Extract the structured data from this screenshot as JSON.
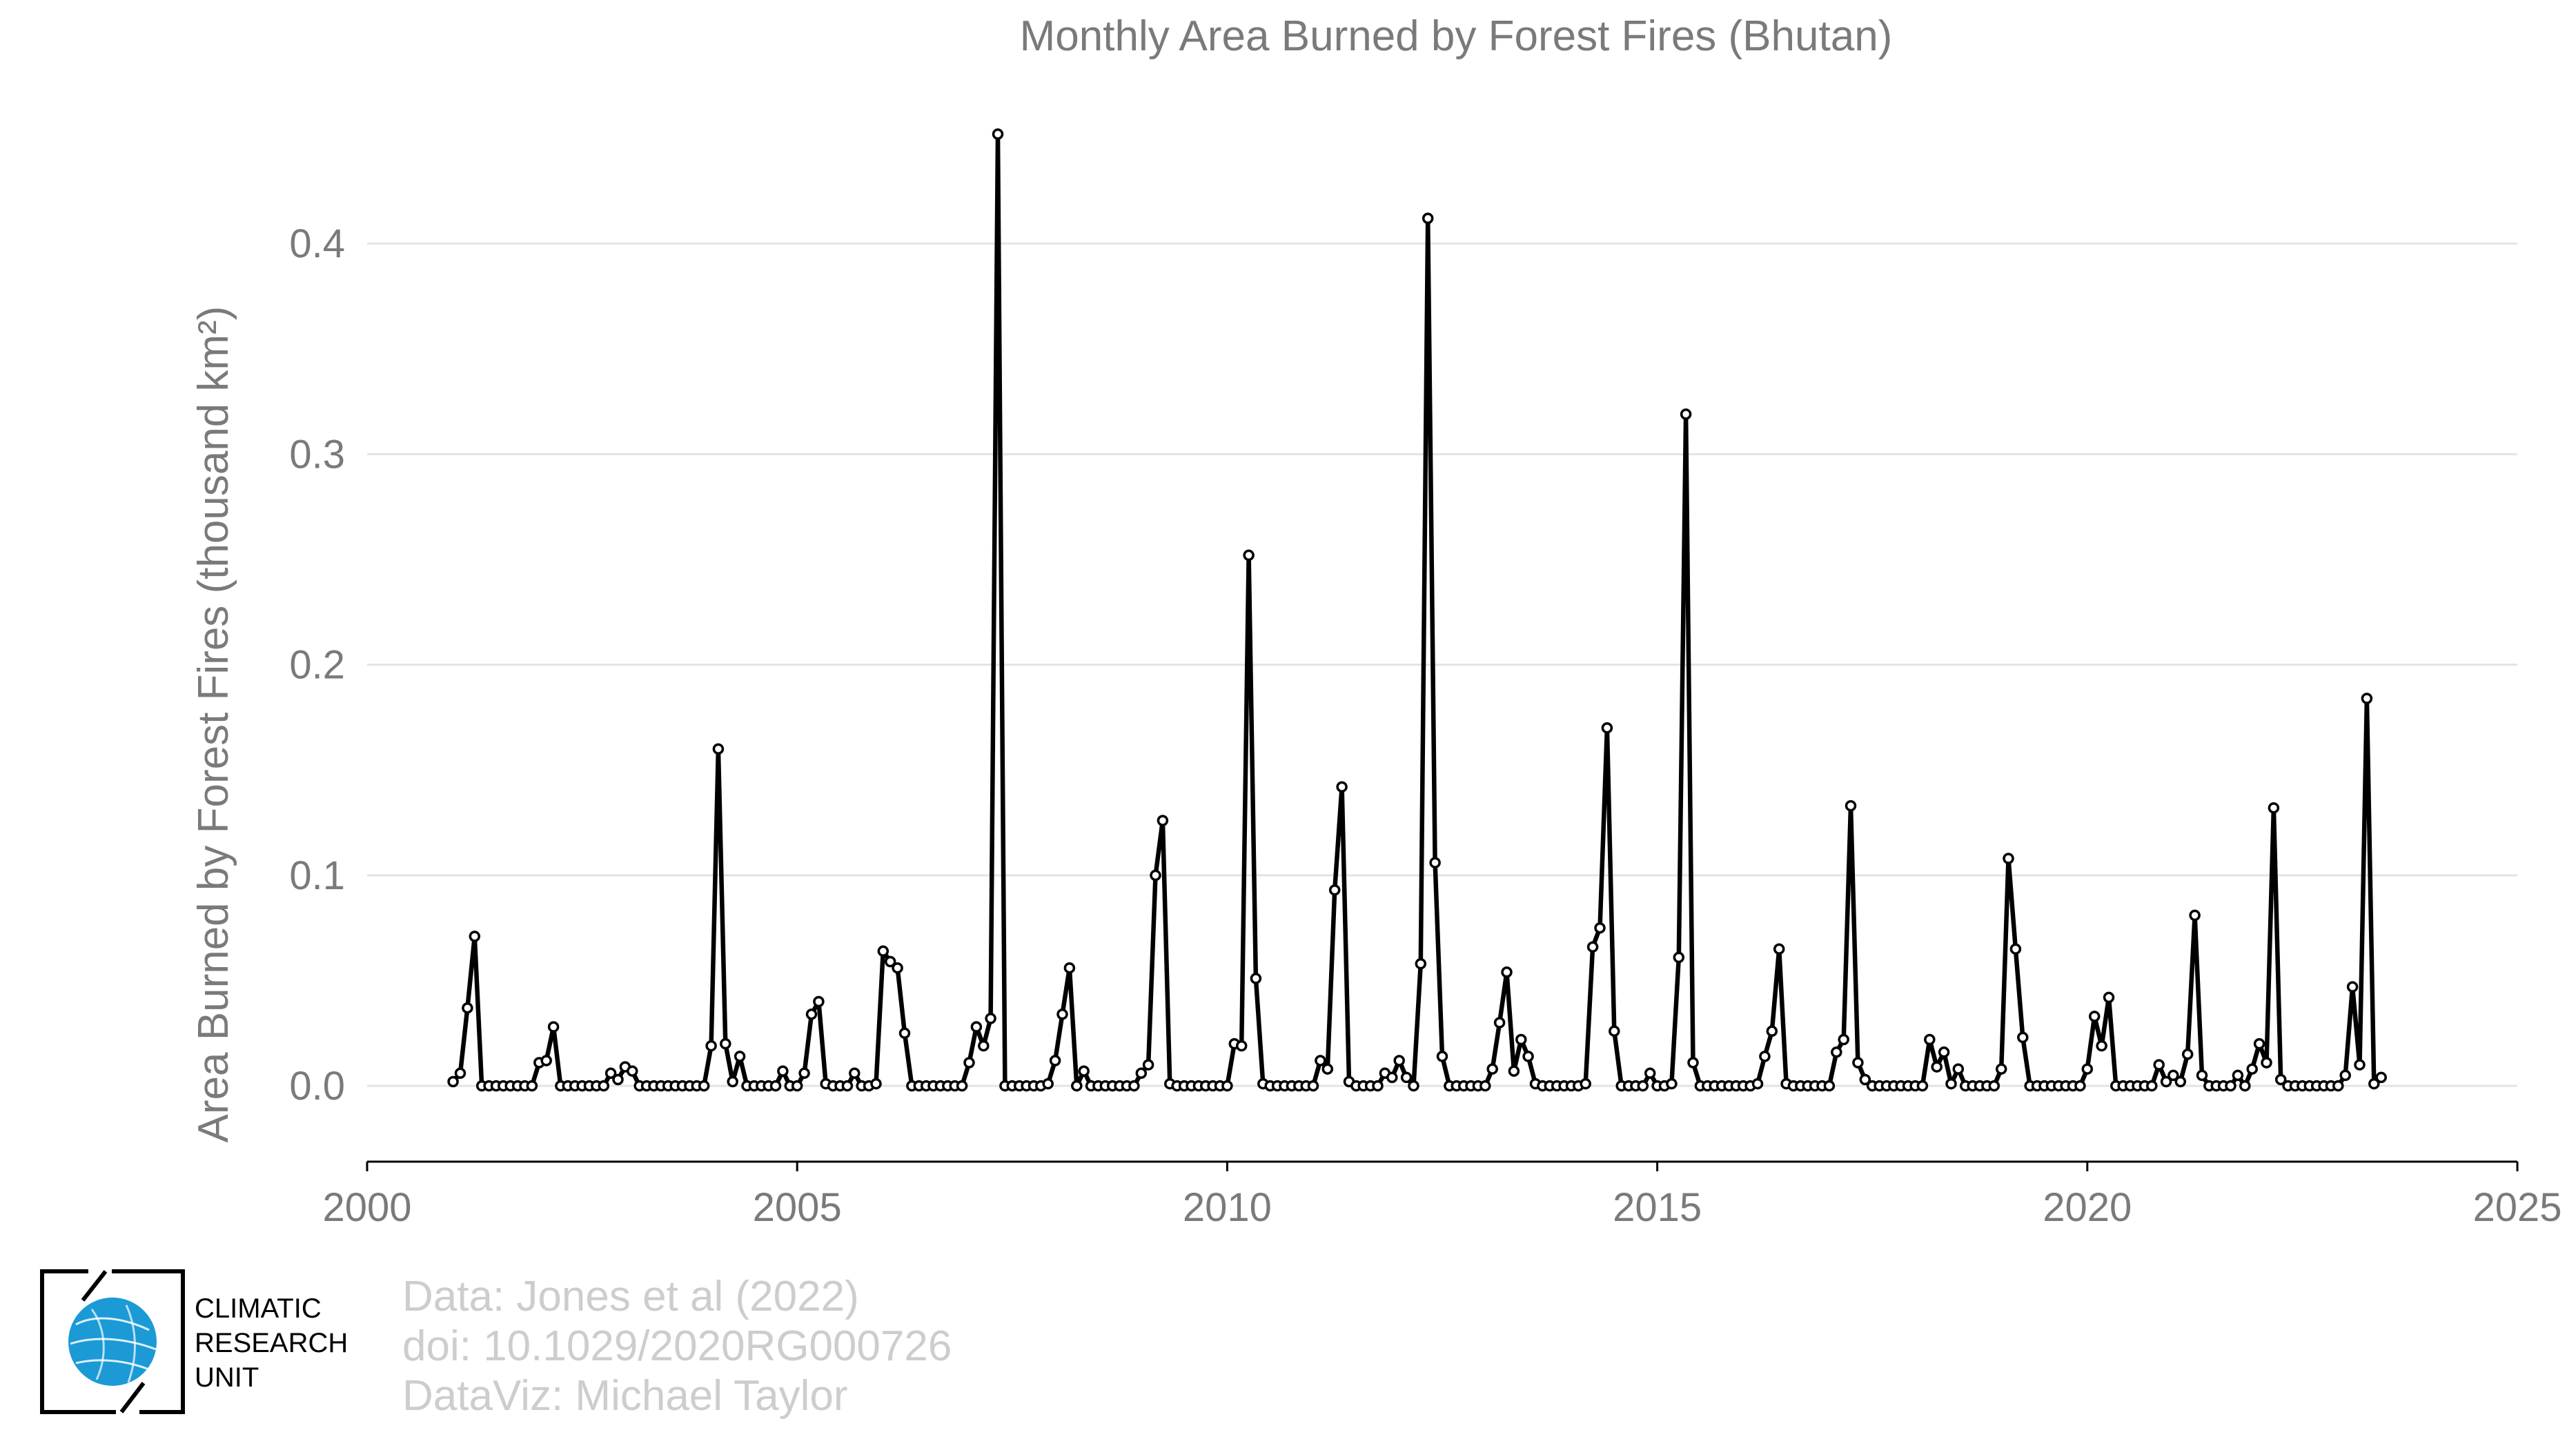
{
  "chart_data": {
    "type": "line",
    "title": "Monthly Area Burned by Forest Fires (Bhutan)",
    "ylabel": "Area Burned by Forest Fires (thousand km²)",
    "xlabel": "",
    "xlim": [
      2000,
      2025
    ],
    "ylim": [
      -0.036,
      0.46
    ],
    "x_ticks": [
      2000,
      2005,
      2010,
      2015,
      2020,
      2025
    ],
    "y_ticks": [
      0.0,
      0.1,
      0.2,
      0.3,
      0.4
    ],
    "y_tick_labels": [
      "0.0",
      "0.1",
      "0.2",
      "0.3",
      "0.4"
    ],
    "grid": "horizontal",
    "legend": "none",
    "line_color": "#000000",
    "marker_fill": "#ffffff",
    "start_year": 2001,
    "start_month": 1,
    "series": [
      {
        "values": [
          0.002,
          0.006,
          0.037,
          0.071,
          0,
          0,
          0,
          0,
          0,
          0,
          0,
          0,
          0.011,
          0.012,
          0.028,
          0,
          0,
          0,
          0,
          0,
          0,
          0,
          0.006,
          0.003,
          0.009,
          0.007,
          0,
          0,
          0,
          0,
          0,
          0,
          0,
          0,
          0,
          0,
          0.019,
          0.16,
          0.02,
          0.002,
          0.014,
          0,
          0,
          0,
          0,
          0,
          0.007,
          0,
          0,
          0.006,
          0.034,
          0.04,
          0.001,
          0,
          0,
          0,
          0.006,
          0,
          0,
          0.001,
          0.064,
          0.059,
          0.056,
          0.025,
          0,
          0,
          0,
          0,
          0,
          0,
          0,
          0,
          0.011,
          0.028,
          0.019,
          0.032,
          0.452,
          0,
          0,
          0,
          0,
          0,
          0,
          0.001,
          0.012,
          0.034,
          0.056,
          0,
          0.007,
          0,
          0,
          0,
          0,
          0,
          0,
          0,
          0.006,
          0.01,
          0.1,
          0.126,
          0.001,
          0,
          0,
          0,
          0,
          0,
          0,
          0,
          0,
          0.02,
          0.019,
          0.252,
          0.051,
          0.001,
          0,
          0,
          0,
          0,
          0,
          0,
          0,
          0.012,
          0.008,
          0.093,
          0.142,
          0.002,
          0,
          0,
          0,
          0,
          0.006,
          0.004,
          0.012,
          0.004,
          0,
          0.058,
          0.412,
          0.106,
          0.014,
          0,
          0,
          0,
          0,
          0,
          0,
          0.008,
          0.03,
          0.054,
          0.007,
          0.022,
          0.014,
          0.001,
          0,
          0,
          0,
          0,
          0,
          0,
          0.001,
          0.066,
          0.075,
          0.17,
          0.026,
          0,
          0,
          0,
          0,
          0.006,
          0,
          0,
          0.001,
          0.061,
          0.319,
          0.011,
          0,
          0,
          0,
          0,
          0,
          0,
          0,
          0,
          0.001,
          0.014,
          0.026,
          0.065,
          0.001,
          0,
          0,
          0,
          0,
          0,
          0,
          0.016,
          0.022,
          0.133,
          0.011,
          0.003,
          0,
          0,
          0,
          0,
          0,
          0,
          0,
          0,
          0.022,
          0.009,
          0.016,
          0.001,
          0.008,
          0,
          0,
          0,
          0,
          0,
          0.008,
          0.108,
          0.065,
          0.023,
          0,
          0,
          0,
          0,
          0,
          0,
          0,
          0,
          0.008,
          0.033,
          0.019,
          0.042,
          0,
          0,
          0,
          0,
          0,
          0,
          0.01,
          0.002,
          0.005,
          0.002,
          0.015,
          0.081,
          0.005,
          0,
          0,
          0,
          0,
          0.005,
          0,
          0.008,
          0.02,
          0.011,
          0.132,
          0.003,
          0,
          0,
          0,
          0,
          0,
          0,
          0,
          0,
          0.005,
          0.047,
          0.01,
          0.184,
          0.001,
          0.004
        ]
      }
    ]
  },
  "logo": {
    "line1": "CLIMATIC",
    "line2": "RESEARCH",
    "line3": "UNIT",
    "globe_color": "#1b9ad6"
  },
  "credits": {
    "line1": "Data: Jones et al (2022)",
    "line2": "doi: 10.1029/2020RG000726",
    "line3": "DataViz: Michael Taylor"
  }
}
